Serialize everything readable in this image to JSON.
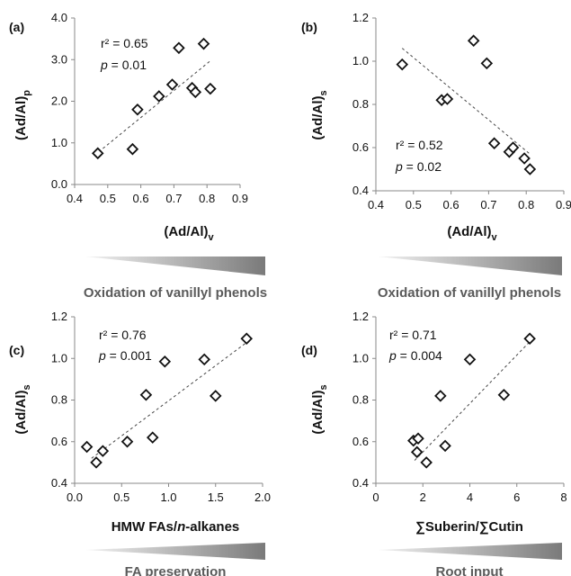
{
  "chart_data": [
    {
      "type": "scatter",
      "panel_label": "(a)",
      "xlabel": "(Ad/Al)",
      "xlabel_sub": "v",
      "ylabel": "(Ad/Al)",
      "ylabel_sub": "p",
      "xlim": [
        0.4,
        0.9
      ],
      "ylim": [
        0.0,
        4.0
      ],
      "xticks": [
        "0.4",
        "0.5",
        "0.6",
        "0.7",
        "0.8",
        "0.9"
      ],
      "yticks": [
        "0.0",
        "1.0",
        "2.0",
        "3.0",
        "4.0"
      ],
      "r2_text": "r² = 0.65",
      "p_label": "p",
      "p_value": " = 0.01",
      "trend": [
        [
          0.46,
          0.7
        ],
        [
          0.81,
          2.97
        ]
      ],
      "x": [
        0.47,
        0.575,
        0.59,
        0.655,
        0.695,
        0.715,
        0.755,
        0.765,
        0.79,
        0.81
      ],
      "y": [
        0.75,
        0.85,
        1.8,
        2.12,
        2.4,
        3.28,
        2.32,
        2.22,
        3.38,
        2.3
      ],
      "caption": "Oxidation of vanillyl phenols"
    },
    {
      "type": "scatter",
      "panel_label": "(b)",
      "xlabel": "(Ad/Al)",
      "xlabel_sub": "v",
      "ylabel": "(Ad/Al)",
      "ylabel_sub": "s",
      "xlim": [
        0.4,
        0.9
      ],
      "ylim": [
        0.4,
        1.2
      ],
      "xticks": [
        "0.4",
        "0.5",
        "0.6",
        "0.7",
        "0.8",
        "0.9"
      ],
      "yticks": [
        "0.4",
        "0.6",
        "0.8",
        "1.0",
        "1.2"
      ],
      "r2_text": "r² = 0.52",
      "p_label": "p",
      "p_value": " = 0.02",
      "trend": [
        [
          0.47,
          1.06
        ],
        [
          0.81,
          0.57
        ]
      ],
      "x": [
        0.47,
        0.575,
        0.59,
        0.66,
        0.695,
        0.715,
        0.755,
        0.765,
        0.795,
        0.81
      ],
      "y": [
        0.985,
        0.82,
        0.825,
        1.095,
        0.99,
        0.62,
        0.58,
        0.6,
        0.55,
        0.5
      ],
      "caption": "Oxidation of vanillyl phenols"
    },
    {
      "type": "scatter",
      "panel_label": "(c)",
      "xlabel": "HMW FAs/",
      "xlabel_italic": "n",
      "xlabel_tail": "-alkanes",
      "ylabel": "(Ad/Al)",
      "ylabel_sub": "s",
      "xlim": [
        0.0,
        2.0
      ],
      "ylim": [
        0.4,
        1.2
      ],
      "xticks": [
        "0.0",
        "0.5",
        "1.0",
        "1.5",
        "2.0"
      ],
      "yticks": [
        "0.4",
        "0.6",
        "0.8",
        "1.0",
        "1.2"
      ],
      "r2_text": "r² = 0.76",
      "p_label": "p",
      "p_value": " = 0.001",
      "trend": [
        [
          0.18,
          0.52
        ],
        [
          1.84,
          1.08
        ]
      ],
      "x": [
        0.13,
        0.23,
        0.3,
        0.56,
        0.76,
        0.83,
        0.96,
        1.38,
        1.5,
        1.83
      ],
      "y": [
        0.575,
        0.5,
        0.555,
        0.6,
        0.825,
        0.62,
        0.985,
        0.995,
        0.82,
        1.095
      ],
      "caption": "FA preservation"
    },
    {
      "type": "scatter",
      "panel_label": "(d)",
      "xlabel": "∑Suberin/∑Cutin",
      "ylabel": "(Ad/Al)",
      "ylabel_sub": "s",
      "xlim": [
        0,
        8
      ],
      "ylim": [
        0.4,
        1.2
      ],
      "xticks": [
        "0",
        "2",
        "4",
        "6",
        "8"
      ],
      "yticks": [
        "0.4",
        "0.6",
        "0.8",
        "1.0",
        "1.2"
      ],
      "r2_text": "r² = 0.71",
      "p_label": "p",
      "p_value": " = 0.004",
      "trend": [
        [
          1.65,
          0.51
        ],
        [
          6.55,
          1.08
        ]
      ],
      "x": [
        1.6,
        1.75,
        1.8,
        2.15,
        2.75,
        2.95,
        4.0,
        5.45,
        6.55
      ],
      "y": [
        0.605,
        0.55,
        0.615,
        0.5,
        0.82,
        0.58,
        0.995,
        0.825,
        1.095
      ],
      "caption": "Root input"
    }
  ],
  "colors": {
    "marker_stroke": "#111111",
    "trend": "#444444",
    "wedge_start": "#f2f2f2",
    "wedge_end": "#7a7a7a",
    "caption": "#5a5a5a"
  }
}
